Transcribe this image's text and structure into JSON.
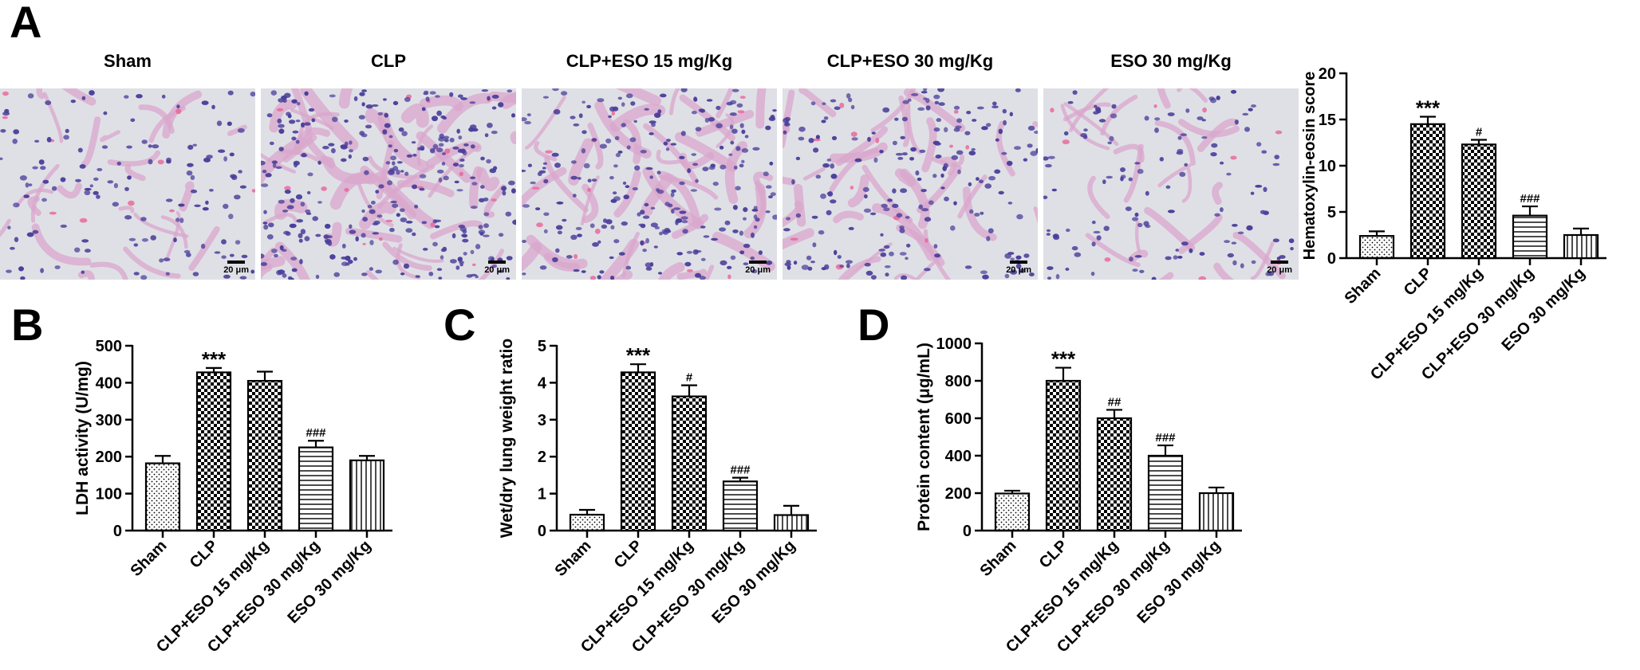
{
  "panels": {
    "a": "A",
    "b": "B",
    "c": "C",
    "d": "D"
  },
  "histology": [
    {
      "label": "Sham",
      "scale": "20 μm"
    },
    {
      "label": "CLP",
      "scale": "20 μm"
    },
    {
      "label": "CLP+ESO 15 mg/Kg",
      "scale": "20 μm"
    },
    {
      "label": "CLP+ESO 30 mg/Kg",
      "scale": "20 μm"
    },
    {
      "label": "ESO 30 mg/Kg",
      "scale": "20 μm"
    }
  ],
  "colors": {
    "bar_stroke": "#000000",
    "axis": "#000000",
    "tissue_bg": "#dfe0e6",
    "nucleus": "#4a3f9a",
    "cytoplasm": "#d9a7cc",
    "rbc": "#e8639a"
  },
  "chart_data": [
    {
      "id": "A",
      "type": "bar",
      "categories": [
        "Sham",
        "CLP",
        "CLP+ESO 15 mg/Kg",
        "CLP+ESO 30 mg/Kg",
        "ESO 30 mg/Kg"
      ],
      "values": [
        2.4,
        14.5,
        12.3,
        4.6,
        2.5
      ],
      "errors": [
        0.5,
        0.8,
        0.5,
        1.0,
        0.7
      ],
      "annotations": [
        "",
        "***",
        "#",
        "###",
        ""
      ],
      "patterns": [
        "dots",
        "checker",
        "checker",
        "hlines",
        "vlines"
      ],
      "ylabel": "Hematoxylin-eosin score",
      "ylim": [
        0,
        20
      ],
      "yticks": [
        "0",
        "5",
        "10",
        "15",
        "20"
      ]
    },
    {
      "id": "B",
      "type": "bar",
      "categories": [
        "Sham",
        "CLP",
        "CLP+ESO 15 mg/Kg",
        "CLP+ESO 30 mg/Kg",
        "ESO 30 mg/Kg"
      ],
      "values": [
        182,
        428,
        405,
        225,
        190
      ],
      "errors": [
        20,
        12,
        25,
        18,
        12
      ],
      "annotations": [
        "",
        "***",
        "",
        "###",
        ""
      ],
      "patterns": [
        "dots",
        "checker",
        "checker",
        "hlines",
        "vlines"
      ],
      "ylabel": "LDH activity (U/mg)",
      "ylim": [
        0,
        500
      ],
      "yticks": [
        "0",
        "100",
        "200",
        "300",
        "400",
        "500"
      ]
    },
    {
      "id": "C",
      "type": "bar",
      "categories": [
        "Sham",
        "CLP",
        "CLP+ESO 15 mg/Kg",
        "CLP+ESO 30 mg/Kg",
        "ESO 30 mg/Kg"
      ],
      "values": [
        0.43,
        4.28,
        3.63,
        1.33,
        0.42
      ],
      "errors": [
        0.13,
        0.22,
        0.3,
        0.1,
        0.25
      ],
      "annotations": [
        "",
        "***",
        "#",
        "###",
        ""
      ],
      "patterns": [
        "dots",
        "checker",
        "checker",
        "hlines",
        "vlines"
      ],
      "ylabel": "Wet/dry lung weight ratio",
      "ylim": [
        0,
        5
      ],
      "yticks": [
        "0",
        "1",
        "2",
        "3",
        "4",
        "5"
      ]
    },
    {
      "id": "D",
      "type": "bar",
      "categories": [
        "Sham",
        "CLP",
        "CLP+ESO 15 mg/Kg",
        "CLP+ESO 30 mg/Kg",
        "ESO 30 mg/Kg"
      ],
      "values": [
        198,
        800,
        600,
        400,
        200
      ],
      "errors": [
        15,
        70,
        45,
        55,
        30
      ],
      "annotations": [
        "",
        "***",
        "##",
        "###",
        ""
      ],
      "patterns": [
        "dots",
        "checker",
        "checker",
        "hlines",
        "vlines"
      ],
      "ylabel": "Protein content (μg/mL)",
      "ylim": [
        0,
        1000
      ],
      "yticks": [
        "0",
        "200",
        "400",
        "600",
        "800",
        "1000"
      ]
    }
  ]
}
